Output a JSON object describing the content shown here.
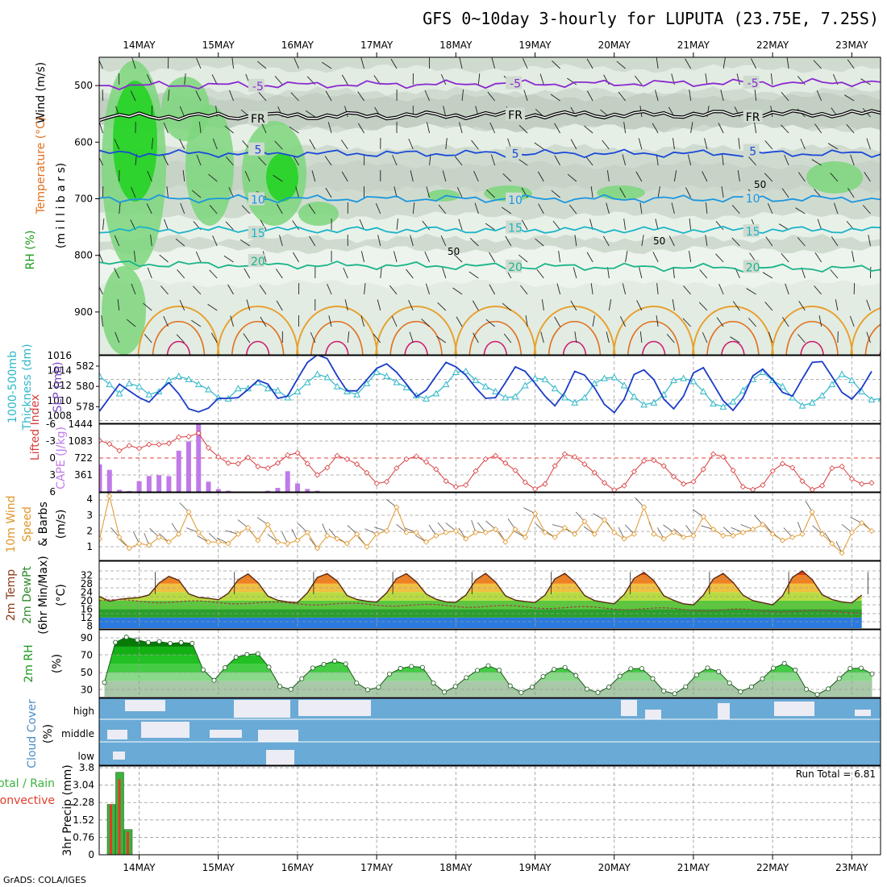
{
  "title": "GFS 0~10day 3-hourly for LUPUTA (23.75E, 7.25S)",
  "credit": "GrADS: COLA/IGES",
  "run_total_label": "Run Total = 6.81",
  "dates": [
    "14MAY",
    "15MAY",
    "16MAY",
    "17MAY",
    "18MAY",
    "19MAY",
    "20MAY",
    "21MAY",
    "22MAY",
    "23MAY"
  ],
  "colors": {
    "grid": "#9a9a9a",
    "rh_light": "#e6f0e6",
    "rh_mid": "#c4d2c4",
    "rh_green": "#7cd67c",
    "rh_bright": "#1fd21f",
    "bar_purple": "#c07ae8",
    "precip_total": "#3cb33c",
    "precip_conv": "#e03c28",
    "cloud": "#6aaad6",
    "cloud_gap": "#ececf4",
    "thick": "#2fb8c8",
    "slp": "#1c3cc8",
    "li": "#d83c3c",
    "wind": "#e0962a"
  },
  "panel_labels": {
    "upper": [
      {
        "text": "Wind (m/s)",
        "color": "#000000"
      },
      {
        "text": "Temperature (°C)",
        "color": "#e07020"
      },
      {
        "text": "(m i l l i b a r s)",
        "color": "#000000"
      },
      {
        "text": "RH (%)",
        "color": "#1a9a1a"
      }
    ],
    "thick": [
      {
        "text": "1000-500mb",
        "color": "#2fb8c8"
      },
      {
        "text": "Thickness (dm)",
        "color": "#2fb8c8"
      },
      {
        "text": "SLP (mb)",
        "color": "#7a4ac8"
      }
    ],
    "li": [
      {
        "text": "Lifted Index",
        "color": "#d83c3c"
      },
      {
        "text": "CAPE (J/kg)",
        "color": "#c07ae8"
      }
    ],
    "wind": [
      {
        "text": "10m Wind",
        "color": "#e0962a"
      },
      {
        "text": "Speed",
        "color": "#e0962a"
      },
      {
        "text": "& Barbs",
        "color": "#000000"
      },
      {
        "text": "(m/s)",
        "color": "#000000"
      }
    ],
    "temp": [
      {
        "text": "2m Temp",
        "color": "#8a3a1a"
      },
      {
        "text": "2m DewPt",
        "color": "#2a8a2a"
      },
      {
        "text": "(6hr Min/Max)",
        "color": "#000000"
      },
      {
        "text": "(°C)",
        "color": "#000000"
      }
    ],
    "rh": [
      {
        "text": "2m RH",
        "color": "#1a9a1a"
      },
      {
        "text": "(%)",
        "color": "#000000"
      }
    ],
    "cloud": [
      {
        "text": "Cloud Cover",
        "color": "#4a8ac8"
      },
      {
        "text": "(%)",
        "color": "#000000"
      }
    ],
    "precip": [
      {
        "text": "Total / Rain",
        "color": "#3cb33c"
      },
      {
        "text": "Convective",
        "color": "#e03c28"
      },
      {
        "text": "3hr Precip (mm)",
        "color": "#000000"
      }
    ]
  },
  "chart_data": [
    {
      "type": "heatmap",
      "title": "Wind / Temperature / RH vertical profile",
      "ylabel": "millibars",
      "yticks": [
        500,
        600,
        700,
        800,
        900
      ],
      "ylim": [
        1000,
        450
      ],
      "temperature_contours": [
        {
          "label": "-5",
          "level_mb": 500,
          "color": "#8a2ad0"
        },
        {
          "label": "FR",
          "level_mb": 555,
          "color": "#000000"
        },
        {
          "label": "5",
          "level_mb": 620,
          "color": "#1a4ad8"
        },
        {
          "label": "10",
          "level_mb": 700,
          "color": "#1a96e0"
        },
        {
          "label": "15",
          "level_mb": 755,
          "color": "#1ab4c8"
        },
        {
          "label": "20",
          "level_mb": 815,
          "color": "#1ab48a"
        }
      ],
      "rh_labels": [
        "50",
        "50",
        "50"
      ]
    },
    {
      "type": "line",
      "title": "1000-500mb Thickness (dm) / SLP (mb)",
      "yticks_left": [
        578,
        580,
        582
      ],
      "yticks_right": [
        1008,
        1010,
        1012,
        1014,
        1016
      ],
      "series": [
        {
          "name": "Thickness",
          "values": [
            581,
            580.2,
            579.3,
            580.3,
            580,
            579.2,
            579.5,
            580.6,
            581,
            580.7,
            580.2,
            579.7,
            578.9,
            578.8,
            579.8,
            579.8,
            580.4,
            579.8,
            579.6,
            578.9,
            579.5,
            580.4,
            581.2,
            580.9,
            580,
            579.5,
            579.2,
            580.3,
            581.4,
            581,
            580.4,
            579.9,
            579.1,
            578.8,
            579.3,
            580.2,
            581.4,
            581.5,
            580.6,
            580,
            579.5,
            578.9,
            579,
            580.1,
            580.8,
            580.7,
            579.8,
            578.9,
            578.4,
            578.9,
            580.3,
            580.8,
            580.9,
            580.1,
            579,
            578.2,
            578.4,
            579.2,
            580.6,
            580.8,
            580.5,
            579.5,
            578.3,
            578,
            578.5,
            579.6,
            580.7,
            581.4,
            580.6,
            580,
            578.9,
            578.1,
            578.4,
            579.1,
            580.2,
            581.2,
            580.6,
            579.5,
            578.7,
            578.8,
            579.3
          ]
        },
        {
          "name": "SLP",
          "values": [
            1008.6,
            1010.4,
            1012.2,
            1011.3,
            1010.4,
            1009.8,
            1011.2,
            1012.4,
            1010.9,
            1008.9,
            1008.5,
            1009,
            1010.3,
            1010.3,
            1010.4,
            1011.5,
            1012.7,
            1012.2,
            1010.3,
            1010.6,
            1012.9,
            1015.1,
            1016.1,
            1015.6,
            1013.3,
            1011.3,
            1011.3,
            1012.8,
            1014.3,
            1014.9,
            1013.8,
            1012.2,
            1010.5,
            1011.4,
            1013.3,
            1015.1,
            1014.5,
            1013.4,
            1011.7,
            1010.3,
            1010.4,
            1012.4,
            1014.5,
            1013.9,
            1012.3,
            1010.6,
            1009.3,
            1011.1,
            1013.9,
            1013.4,
            1011.7,
            1009.5,
            1008.4,
            1010.2,
            1013.5,
            1014.1,
            1012.8,
            1010.2,
            1008.9,
            1010.6,
            1013.7,
            1014.4,
            1012.2,
            1010,
            1008.7,
            1010.4,
            1013.3,
            1014.2,
            1012.8,
            1011.1,
            1010.6,
            1012.9,
            1015.1,
            1015.2,
            1013.2,
            1011.1,
            1010.2,
            1011.7,
            1013.9
          ]
        }
      ]
    },
    {
      "type": "bar",
      "title": "Lifted Index / CAPE (J/kg)",
      "yticks_left": [
        -6,
        -3,
        0,
        3,
        6
      ],
      "yticks_right": [
        361,
        722,
        1083,
        1444
      ],
      "cape_values": [
        586,
        470,
        45,
        20,
        228,
        339,
        357,
        335,
        878,
        1076,
        1444,
        218,
        59,
        25,
        0,
        0,
        0,
        25,
        85,
        441,
        180,
        62,
        25,
        0,
        0,
        0,
        0,
        0,
        0,
        0,
        0,
        0,
        0,
        0,
        0,
        0,
        0,
        0,
        0,
        0,
        0,
        0,
        0,
        0,
        0,
        0,
        0,
        0,
        0,
        0,
        0,
        0,
        0,
        0,
        0,
        0,
        0,
        0,
        0,
        0,
        0,
        0,
        0,
        0,
        0,
        0,
        0,
        0,
        0,
        0,
        0,
        0,
        0,
        0,
        0,
        0,
        0,
        0,
        0,
        0
      ],
      "lifted_index": [
        -3.1,
        -2.5,
        -1.3,
        -2.2,
        -1.7,
        -2.4,
        -2.4,
        -2.6,
        -3.7,
        -3.8,
        -4.4,
        -1.8,
        -0.2,
        0.9,
        1,
        -0.1,
        1.5,
        1.8,
        0.9,
        -0.5,
        -0.9,
        1,
        3,
        1.7,
        -0.4,
        0.2,
        1.1,
        2.6,
        4.5,
        4.2,
        1.8,
        0.2,
        -0.3,
        0.7,
        2,
        4.1,
        5.1,
        4.8,
        2.3,
        0.2,
        -0.4,
        0.9,
        2.2,
        4.3,
        5.5,
        4.6,
        1.4,
        -0.7,
        -0.2,
        1.1,
        2.6,
        4.4,
        5.7,
        4.9,
        2.4,
        0.5,
        0.4,
        1.4,
        3.3,
        4.6,
        4.2,
        2,
        -0.7,
        -0.2,
        2.2,
        5.1,
        5.6,
        4.8,
        2.3,
        1,
        1.7,
        4.1,
        5.6,
        4.9,
        1.8,
        1.5,
        3.7,
        4.6,
        4.4
      ]
    },
    {
      "type": "line",
      "title": "10m Wind Speed & Barbs (m/s)",
      "yticks": [
        1,
        2,
        3,
        4
      ],
      "values": [
        1.5,
        4.2,
        1.6,
        0.9,
        1.2,
        1.1,
        1.6,
        1.3,
        1.8,
        3.2,
        1.9,
        1.3,
        1.3,
        1.2,
        1.8,
        2.2,
        1.4,
        2.4,
        1.3,
        1.2,
        1.4,
        1.9,
        0.9,
        1.7,
        1.5,
        1.2,
        1.8,
        1,
        1.8,
        2,
        3.5,
        1.9,
        1.9,
        1.3,
        1.7,
        1.9,
        2,
        1.5,
        1.9,
        1.9,
        2.1,
        1.3,
        2.1,
        1.6,
        3.1,
        1.9,
        1.6,
        2.2,
        1.8,
        2.6,
        1.8,
        2.7,
        1.9,
        1.5,
        1.8,
        3.5,
        1.8,
        1.5,
        1.9,
        1.6,
        1.7,
        2.9,
        2.1,
        1.7,
        1.7,
        1.9,
        2.1,
        2.4,
        1.8,
        1.4,
        1.6,
        1.8,
        3.2,
        1.8,
        1.2,
        0.6,
        1.9,
        2.5,
        2
      ]
    },
    {
      "type": "area",
      "title": "2m Temp / 2m DewPt (6hr Min/Max) (°C)",
      "yticks": [
        8,
        12,
        16,
        20,
        24,
        28,
        32
      ],
      "temperature": [
        21.9,
        19.7,
        20.6,
        21.1,
        21.4,
        22.7,
        28.2,
        31.4,
        29.6,
        23.2,
        21.5,
        21.1,
        20.4,
        23.4,
        29.8,
        32.6,
        28.5,
        22.1,
        20.1,
        19.4,
        19.1,
        23.7,
        30.9,
        32.7,
        29.3,
        22.4,
        20.5,
        19.7,
        19.3,
        23.6,
        30.4,
        32.7,
        28.9,
        23.1,
        20.6,
        19.4,
        19.2,
        22.6,
        29.7,
        32.8,
        28.7,
        22.3,
        20.2,
        19.6,
        19.1,
        22.6,
        30.2,
        32.8,
        28.8,
        22.4,
        20,
        19.2,
        18.5,
        22.9,
        30.5,
        33.3,
        29.4,
        22.3,
        20.1,
        18.5,
        18,
        22.6,
        30.2,
        32.8,
        28.6,
        22.6,
        20,
        19,
        18,
        22.3,
        31,
        34,
        29.8,
        22.8,
        20.5,
        19.4,
        18.9,
        22.6
      ]
    },
    {
      "type": "area",
      "title": "2m RH (%)",
      "yticks": [
        30,
        50,
        70,
        90
      ],
      "values": [
        38.5,
        85,
        91,
        87.8,
        84.9,
        85.9,
        83.8,
        84.8,
        83.9,
        53.2,
        41,
        55.6,
        67.7,
        70.9,
        71.8,
        56.3,
        33.9,
        30.6,
        42.9,
        55.3,
        59.5,
        63.3,
        60,
        37.9,
        30.1,
        33,
        48.3,
        54.8,
        57.1,
        56,
        37.8,
        27.3,
        33.9,
        44.1,
        52.5,
        57.9,
        52.7,
        34.6,
        26.9,
        33.1,
        45.4,
        53.7,
        55.9,
        46.5,
        30.8,
        26.9,
        33.2,
        45.8,
        54.4,
        54.6,
        43,
        28.6,
        25.5,
        33.6,
        47.2,
        55.3,
        51.1,
        37.9,
        27.8,
        33.4,
        42.8,
        55.1,
        60.5,
        52.8,
        30.6,
        24.6,
        31.1,
        43.1,
        54.7,
        55.1,
        48.4
      ]
    },
    {
      "type": "table",
      "title": "Cloud Cover (%)",
      "rows": [
        "high",
        "middle",
        "low"
      ]
    },
    {
      "type": "bar",
      "title": "3hr Precip (mm)",
      "yticks": [
        0,
        0.76,
        1.52,
        2.28,
        3.04,
        3.8
      ],
      "total": [
        2.2,
        3.6,
        1.1
      ],
      "convective": [
        2.2,
        3.3,
        1.0
      ],
      "run_total": 6.81
    }
  ]
}
